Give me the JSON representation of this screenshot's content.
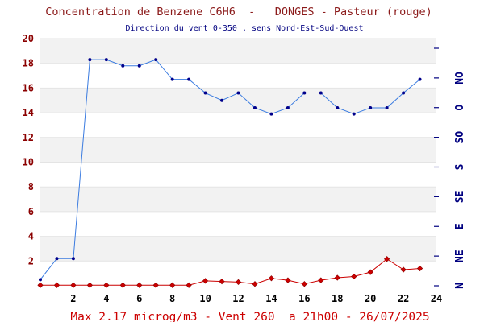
{
  "header": {
    "title": "Concentration de Benzene C6H6  -   DONGES - Pasteur (rouge)",
    "subtitle": "Direction du vent 0-350 , sens Nord-Est-Sud-Ouest"
  },
  "footer": {
    "summary": "Max 2.17 microg/m3 - Vent 260  a 21h00 - 26/07/2025"
  },
  "colors": {
    "concentration": "#cc0000",
    "wind": "#3a7be0",
    "band": "#f2f2f2",
    "axis_left_labels": "#8b0000",
    "axis_right_labels": "#000080"
  },
  "chart_data": {
    "type": "line",
    "title": "Concentration de Benzene C6H6  -   DONGES - Pasteur (rouge)",
    "subtitle": "Direction du vent 0-350 , sens Nord-Est-Sud-Ouest",
    "xlim": [
      0,
      24
    ],
    "x_ticks": [
      2,
      4,
      6,
      8,
      10,
      12,
      14,
      16,
      18,
      20,
      22,
      24
    ],
    "ylim": [
      0,
      20
    ],
    "y_ticks": [
      2,
      4,
      6,
      8,
      10,
      12,
      14,
      16,
      18,
      20
    ],
    "y2_labels": [
      "N",
      "NE",
      "E",
      "SE",
      "S",
      "SO",
      "O",
      "NO"
    ],
    "y2_range_degrees": [
      0,
      360
    ],
    "grid": "alternating horizontal bands",
    "series": [
      {
        "marker": "diamond",
        "color": "#cc0000",
        "x": [
          0,
          1,
          2,
          3,
          4,
          5,
          6,
          7,
          8,
          9,
          10,
          11,
          12,
          13,
          14,
          15,
          16,
          17,
          18,
          19,
          20,
          21,
          22,
          23
        ],
        "values": [
          0.05,
          0.05,
          0.05,
          0.05,
          0.05,
          0.05,
          0.05,
          0.05,
          0.05,
          0.05,
          0.4,
          0.35,
          0.3,
          0.15,
          0.6,
          0.45,
          0.15,
          0.45,
          0.65,
          0.75,
          1.1,
          2.17,
          1.3,
          1.4
        ]
      },
      {
        "marker": "dot",
        "color": "#3a7be0",
        "x": [
          0,
          1,
          2,
          3,
          4,
          5,
          6,
          7,
          8,
          9,
          10,
          11,
          12,
          13,
          14,
          15,
          16,
          17,
          18,
          19,
          20,
          21,
          22,
          23
        ],
        "values": [
          0.5,
          2.2,
          2.2,
          18.3,
          18.3,
          17.8,
          17.8,
          18.3,
          16.7,
          16.7,
          15.6,
          15.0,
          15.6,
          14.4,
          13.9,
          14.4,
          15.6,
          15.6,
          14.4,
          13.9,
          14.4,
          14.4,
          15.6,
          16.7
        ]
      }
    ],
    "footer": "Max 2.17 microg/m3 - Vent 260  a 21h00 - 26/07/2025"
  }
}
